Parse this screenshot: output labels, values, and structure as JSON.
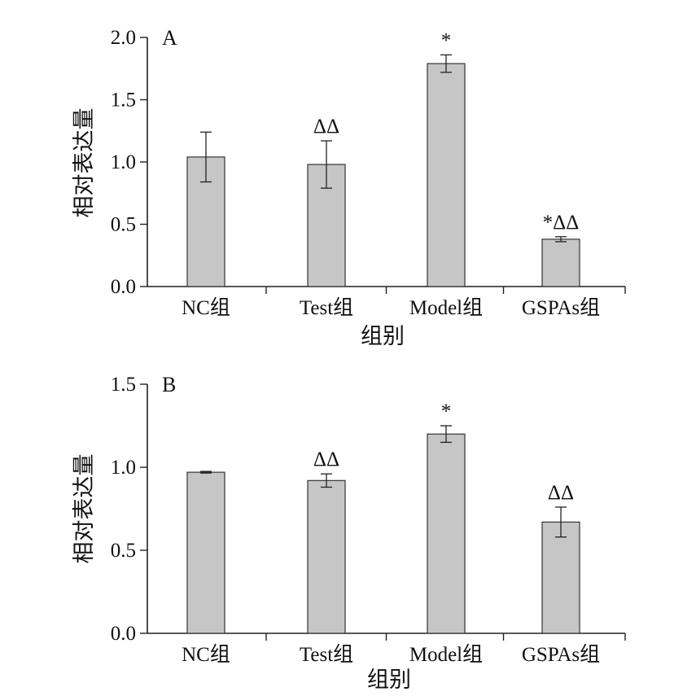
{
  "chart_data": [
    {
      "type": "bar",
      "panel_label": "A",
      "categories": [
        "NC组",
        "Test组",
        "Model组",
        "GSPAs组"
      ],
      "values": [
        1.04,
        0.98,
        1.79,
        0.38
      ],
      "errors": [
        0.2,
        0.19,
        0.07,
        0.02
      ],
      "significance": [
        "",
        "ΔΔ",
        "*",
        "*ΔΔ"
      ],
      "xlabel": "组别",
      "ylabel": "相对表达量",
      "ylim": [
        0,
        2.0
      ],
      "yticks": [
        "0.0",
        "0.5",
        "1.0",
        "1.5",
        "2.0"
      ],
      "grid": false,
      "bar_color": "#c6c6c6"
    },
    {
      "type": "bar",
      "panel_label": "B",
      "categories": [
        "NC组",
        "Test组",
        "Model组",
        "GSPAs组"
      ],
      "values": [
        0.97,
        0.92,
        1.2,
        0.67
      ],
      "errors": [
        0.005,
        0.04,
        0.05,
        0.09
      ],
      "significance": [
        "",
        "ΔΔ",
        "*",
        "ΔΔ"
      ],
      "xlabel": "组别",
      "ylabel": "相对表达量",
      "ylim": [
        0,
        1.5
      ],
      "yticks": [
        "0.0",
        "0.5",
        "1.0",
        "1.5"
      ],
      "grid": false,
      "bar_color": "#c6c6c6"
    }
  ]
}
